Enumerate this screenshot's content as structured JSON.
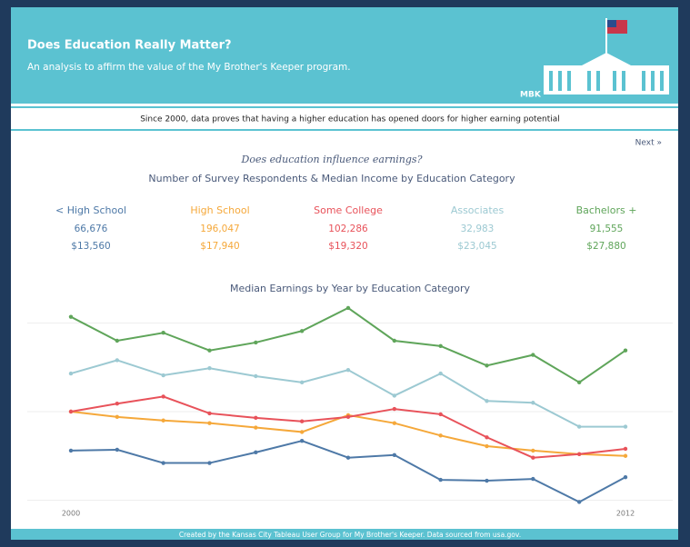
{
  "header": {
    "title": "Does Education Really Matter?",
    "subtitle": "An analysis to affirm the value of the My Brother's Keeper program.",
    "logo": "MBK"
  },
  "banner": "Since 2000, data proves that having a higher education has opened doors for higher earning potential",
  "next": "Next »",
  "question": "Does education influence earnings?",
  "summary_title": "Number of Survey Respondents & Median Income by Education Category",
  "footer": "Created by the Kansas City Tableau User Group for My Brother's Keeper. Data sourced from usa.gov.",
  "chart_data": {
    "type": "line",
    "title": "Median Earnings by Year by Education Category",
    "x": [
      2000,
      2001,
      2002,
      2003,
      2004,
      2005,
      2006,
      2007,
      2008,
      2009,
      2010,
      2011,
      2012
    ],
    "xlim": [
      2000,
      2012
    ],
    "xticks": [
      2000,
      2012
    ],
    "ylim": [
      8000,
      32000
    ],
    "yticks": [
      10000,
      20000,
      30000
    ],
    "grid": true,
    "series": [
      {
        "name": "< High School",
        "respondents": "66,676",
        "median_income": "$13,560",
        "color": "#4e79a7",
        "values": [
          15600,
          15700,
          14200,
          14200,
          15400,
          16700,
          14800,
          15100,
          12300,
          12200,
          12400,
          9800,
          12600
        ]
      },
      {
        "name": "High School",
        "respondents": "196,047",
        "median_income": "$17,940",
        "color": "#f5a83a",
        "values": [
          20000,
          19400,
          19000,
          18700,
          18200,
          17700,
          19600,
          18700,
          17300,
          16100,
          15600,
          15200,
          15000
        ]
      },
      {
        "name": "Some College",
        "respondents": "102,286",
        "median_income": "$19,320",
        "color": "#e8525a",
        "values": [
          20000,
          20900,
          21700,
          19800,
          19300,
          18900,
          19400,
          20300,
          19700,
          17100,
          14800,
          15200,
          15800
        ]
      },
      {
        "name": "Associates",
        "respondents": "32,983",
        "median_income": "$23,045",
        "color": "#9cc9d2",
        "values": [
          24300,
          25800,
          24100,
          24900,
          24000,
          23300,
          24700,
          21800,
          24300,
          21200,
          21000,
          18300,
          18300
        ]
      },
      {
        "name": "Bachelors +",
        "respondents": "91,555",
        "median_income": "$27,880",
        "color": "#5fa55a",
        "values": [
          30700,
          28000,
          28900,
          26900,
          27800,
          29100,
          31700,
          28000,
          27400,
          25200,
          26400,
          23300,
          26900
        ]
      }
    ]
  }
}
